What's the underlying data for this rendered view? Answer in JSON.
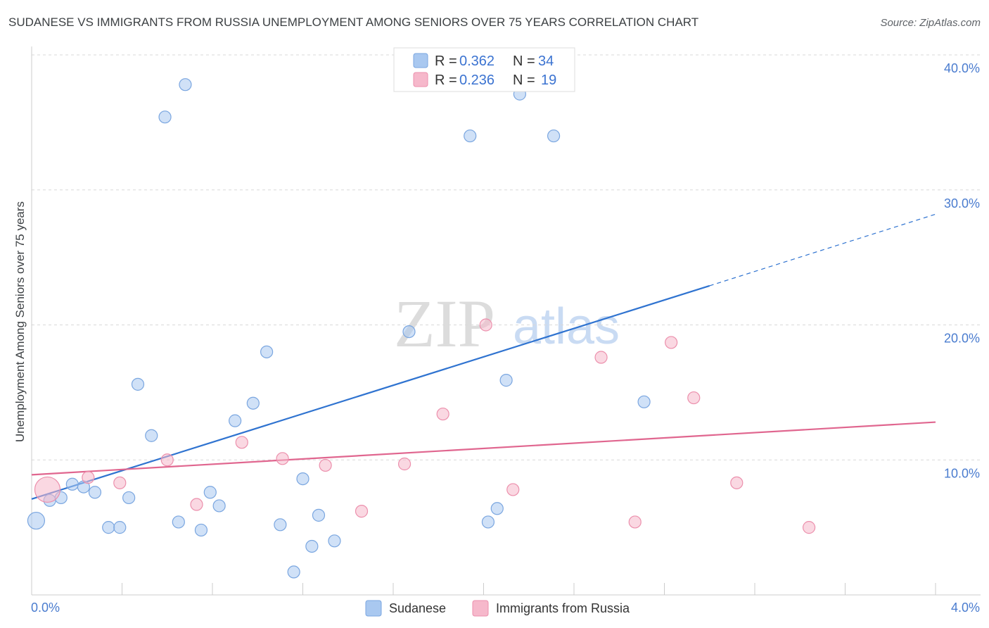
{
  "title": "SUDANESE VS IMMIGRANTS FROM RUSSIA UNEMPLOYMENT AMONG SENIORS OVER 75 YEARS CORRELATION CHART",
  "source": "Source: ZipAtlas.com",
  "watermark": {
    "zip": "ZIP",
    "atlas": "atlas"
  },
  "legend": {
    "r_label": "R = ",
    "n_label": "N = ",
    "rows": [
      {
        "series": "Sudanese",
        "r": "0.362",
        "n": "34"
      },
      {
        "series": "Immigrants from Russia",
        "r": "0.236",
        "n": "19"
      }
    ]
  },
  "colors": {
    "sudanese_fill": "#a9c8f0",
    "sudanese_stroke": "#7aa6e0",
    "sudanese_line": "#2f73d0",
    "russia_fill": "#f6b8cb",
    "russia_stroke": "#ec8fac",
    "russia_line": "#e0668f"
  },
  "chart_data": {
    "type": "scatter",
    "title": "SUDANESE VS IMMIGRANTS FROM RUSSIA UNEMPLOYMENT AMONG SENIORS OVER 75 YEARS CORRELATION CHART",
    "xlabel": "",
    "ylabel": "Unemployment Among Seniors over 75 years",
    "xlim": [
      0,
      4.0
    ],
    "ylim": [
      0,
      40.0
    ],
    "x_tick_labels": [
      "0.0%",
      "4.0%"
    ],
    "y_ticks": [
      10,
      20,
      30,
      40
    ],
    "y_tick_labels": [
      "10.0%",
      "20.0%",
      "30.0%",
      "40.0%"
    ],
    "grid": true,
    "legend_position": "top-center",
    "series": [
      {
        "name": "Sudanese",
        "points": [
          {
            "x": 0.02,
            "y": 5.5,
            "size": "large"
          },
          {
            "x": 0.08,
            "y": 7.0
          },
          {
            "x": 0.13,
            "y": 7.2
          },
          {
            "x": 0.18,
            "y": 8.2
          },
          {
            "x": 0.23,
            "y": 8.0
          },
          {
            "x": 0.28,
            "y": 7.6
          },
          {
            "x": 0.34,
            "y": 5.0
          },
          {
            "x": 0.39,
            "y": 5.0
          },
          {
            "x": 0.43,
            "y": 7.2
          },
          {
            "x": 0.47,
            "y": 15.6
          },
          {
            "x": 0.53,
            "y": 11.8
          },
          {
            "x": 0.59,
            "y": 35.4
          },
          {
            "x": 0.65,
            "y": 5.4
          },
          {
            "x": 0.68,
            "y": 37.8
          },
          {
            "x": 0.75,
            "y": 4.8
          },
          {
            "x": 0.79,
            "y": 7.6
          },
          {
            "x": 0.83,
            "y": 6.6
          },
          {
            "x": 0.9,
            "y": 12.9
          },
          {
            "x": 0.98,
            "y": 14.2
          },
          {
            "x": 1.04,
            "y": 18.0
          },
          {
            "x": 1.1,
            "y": 5.2
          },
          {
            "x": 1.16,
            "y": 1.7
          },
          {
            "x": 1.2,
            "y": 8.6
          },
          {
            "x": 1.24,
            "y": 3.6
          },
          {
            "x": 1.27,
            "y": 5.9
          },
          {
            "x": 1.34,
            "y": 4.0
          },
          {
            "x": 1.67,
            "y": 19.5
          },
          {
            "x": 1.94,
            "y": 34.0
          },
          {
            "x": 2.02,
            "y": 5.4
          },
          {
            "x": 2.06,
            "y": 6.4
          },
          {
            "x": 2.1,
            "y": 15.9
          },
          {
            "x": 2.16,
            "y": 37.1
          },
          {
            "x": 2.31,
            "y": 34.0
          },
          {
            "x": 2.71,
            "y": 14.3
          }
        ],
        "trend": {
          "x_start": 0.0,
          "y_start": 7.1,
          "x_solid_end": 3.0,
          "y_solid_end": 22.9,
          "x_end": 4.0,
          "y_end": 28.2
        }
      },
      {
        "name": "Immigrants from Russia",
        "points": [
          {
            "x": 0.07,
            "y": 7.8,
            "size": "large"
          },
          {
            "x": 0.25,
            "y": 8.7
          },
          {
            "x": 0.39,
            "y": 8.3
          },
          {
            "x": 0.6,
            "y": 10.0
          },
          {
            "x": 0.73,
            "y": 6.7
          },
          {
            "x": 0.93,
            "y": 11.3
          },
          {
            "x": 1.11,
            "y": 10.1
          },
          {
            "x": 1.3,
            "y": 9.6
          },
          {
            "x": 1.46,
            "y": 6.2
          },
          {
            "x": 1.65,
            "y": 9.7
          },
          {
            "x": 1.82,
            "y": 13.4
          },
          {
            "x": 2.01,
            "y": 20.0
          },
          {
            "x": 2.13,
            "y": 7.8
          },
          {
            "x": 2.52,
            "y": 17.6
          },
          {
            "x": 2.67,
            "y": 5.4
          },
          {
            "x": 2.83,
            "y": 18.7
          },
          {
            "x": 2.93,
            "y": 14.6
          },
          {
            "x": 3.12,
            "y": 8.3
          },
          {
            "x": 3.44,
            "y": 5.0
          }
        ],
        "trend": {
          "x_start": 0.0,
          "y_start": 8.9,
          "x_end": 4.0,
          "y_end": 12.8
        }
      }
    ]
  }
}
